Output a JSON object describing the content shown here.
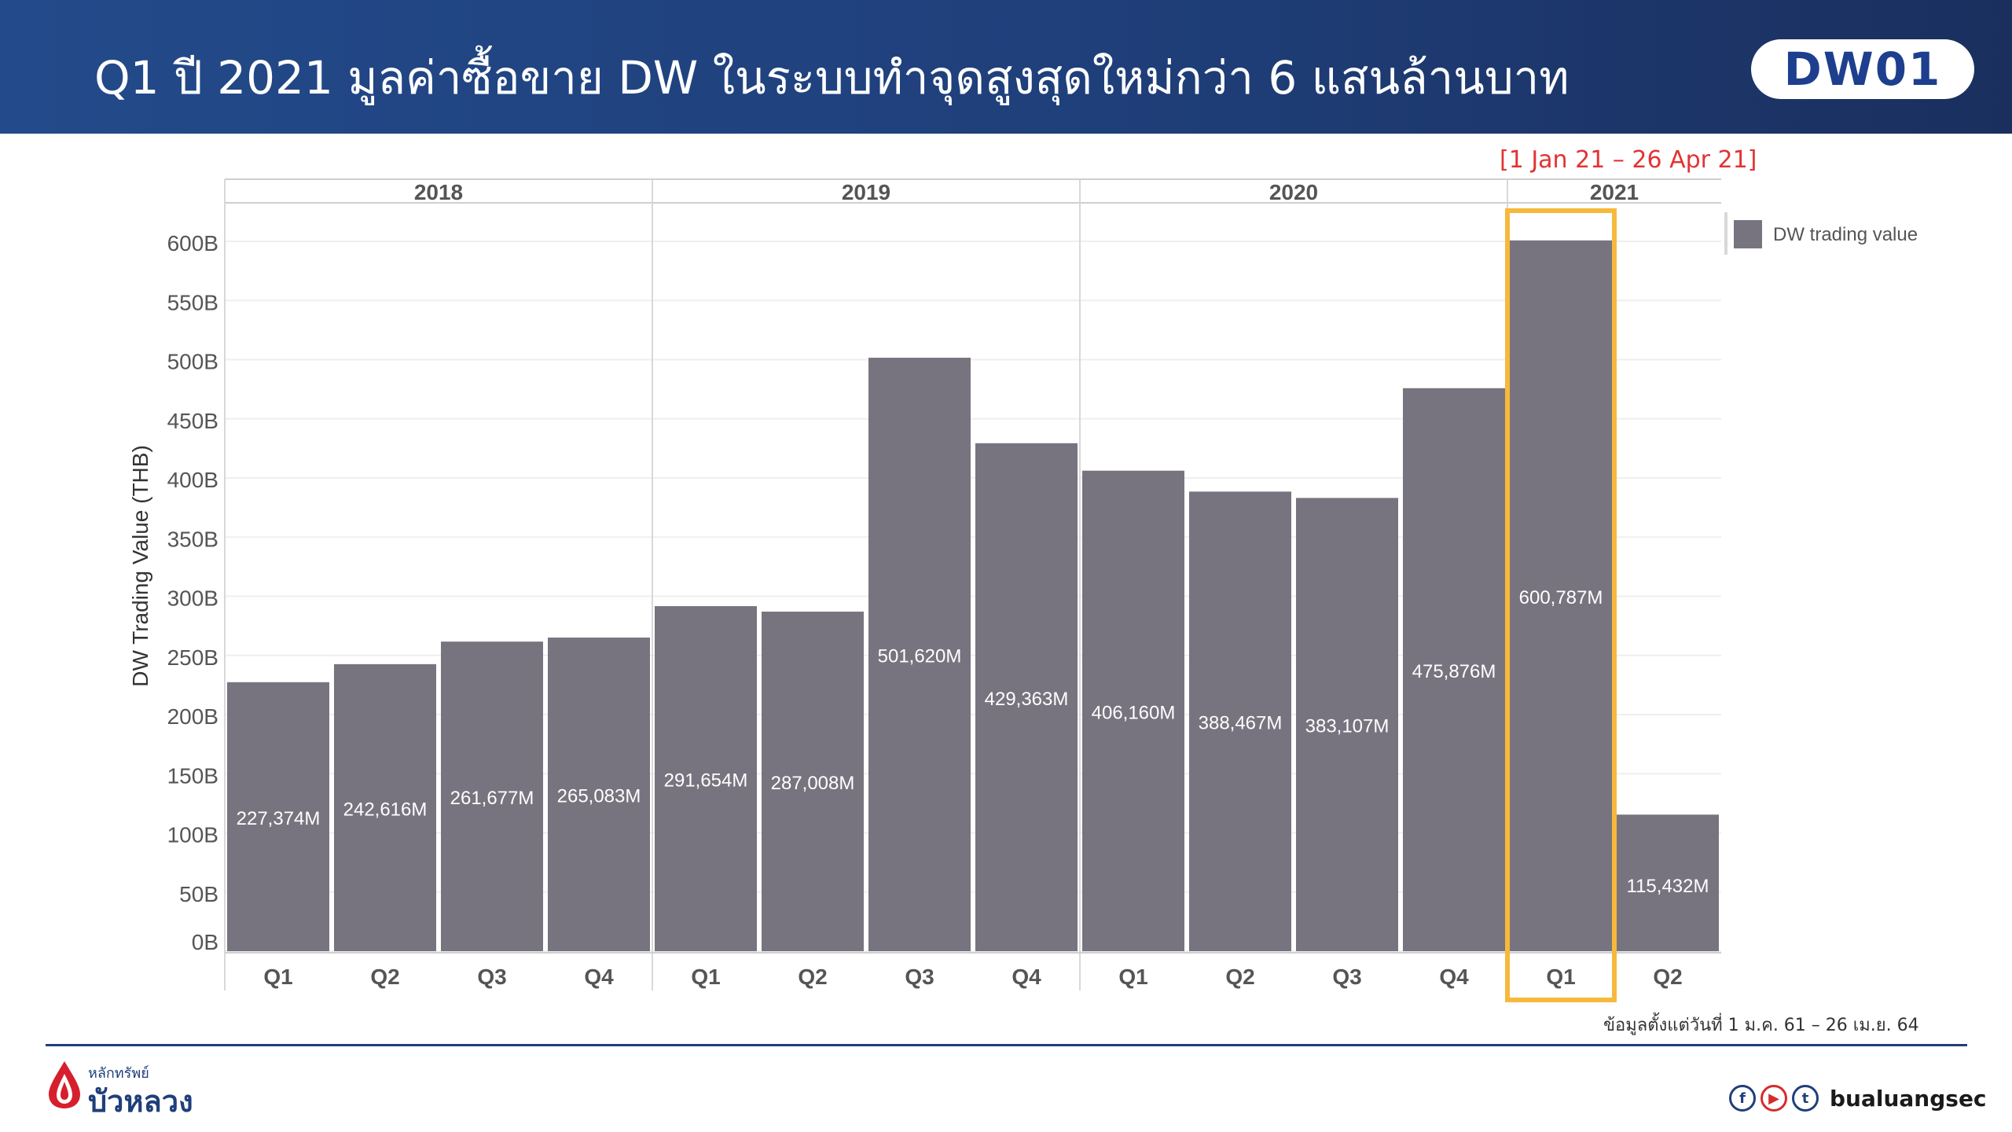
{
  "header": {
    "title": "Q1 ปี 2021 มูลค่าซื้อขาย DW ในระบบทำจุดสูงสุดใหม่กว่า 6 แสนล้านบาท",
    "logo": "DW01"
  },
  "date_note": "[1 Jan 21 – 26 Apr 21]",
  "source_note": "ข้อมูลตั้งแต่วันที่ 1 ม.ค. 61 – 26 เม.ย. 64",
  "brand": {
    "small": "หลักทรัพย์",
    "name": "บัวหลวง",
    "handle": "bualuangsec",
    "social_icons": [
      "facebook-icon",
      "youtube-icon",
      "twitter-icon"
    ]
  },
  "colors": {
    "bar": "#78747f",
    "highlight": "#f6b93b",
    "red_note": "#e23333",
    "header": "#1f3f7a"
  },
  "chart_data": {
    "type": "bar",
    "title": "",
    "ylabel": "DW Trading Value (THB)",
    "xlabel": "",
    "ylim": [
      0,
      630
    ],
    "yticks": [
      0,
      50,
      100,
      150,
      200,
      250,
      300,
      350,
      400,
      450,
      500,
      550,
      600
    ],
    "ytick_labels": [
      "0B",
      "50B",
      "100B",
      "150B",
      "200B",
      "250B",
      "300B",
      "350B",
      "400B",
      "450B",
      "500B",
      "550B",
      "600B"
    ],
    "legend": [
      {
        "name": "DW trading value",
        "position": "top-right"
      }
    ],
    "groups": [
      {
        "label": "2018",
        "categories": [
          "Q1",
          "Q2",
          "Q3",
          "Q4"
        ]
      },
      {
        "label": "2019",
        "categories": [
          "Q1",
          "Q2",
          "Q3",
          "Q4"
        ]
      },
      {
        "label": "2020",
        "categories": [
          "Q1",
          "Q2",
          "Q3",
          "Q4"
        ]
      },
      {
        "label": "2021",
        "categories": [
          "Q1",
          "Q2"
        ]
      }
    ],
    "categories": [
      "Q1",
      "Q2",
      "Q3",
      "Q4",
      "Q1",
      "Q2",
      "Q3",
      "Q4",
      "Q1",
      "Q2",
      "Q3",
      "Q4",
      "Q1",
      "Q2"
    ],
    "values": [
      227.374,
      242.616,
      261.677,
      265.083,
      291.654,
      287.008,
      501.62,
      429.363,
      406.16,
      388.467,
      383.107,
      475.876,
      600.787,
      115.432
    ],
    "data_labels": [
      "227,374M",
      "242,616M",
      "261,677M",
      "265,083M",
      "291,654M",
      "287,008M",
      "501,620M",
      "429,363M",
      "406,160M",
      "388,467M",
      "383,107M",
      "475,876M",
      "600,787M",
      "115,432M"
    ],
    "highlight_index": 12
  }
}
